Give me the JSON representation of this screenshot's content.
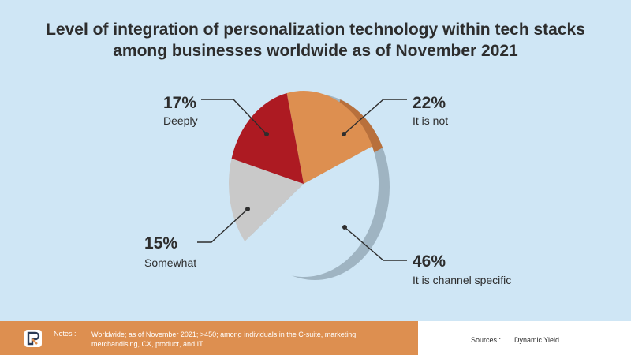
{
  "chart_data": {
    "type": "pie",
    "title_lines": [
      "Level of integration of personalization technology within tech stacks",
      "among businesses worldwide as of November 2021"
    ],
    "slices": [
      {
        "label": "It is not",
        "value": 22,
        "value_label": "22%",
        "color": "#dd8f50"
      },
      {
        "label": "It is channel specific",
        "value": 46,
        "value_label": "46%",
        "color": "#cfe6f5"
      },
      {
        "label": "Somewhat",
        "value": 15,
        "value_label": "15%",
        "color": "#c9c9c9"
      },
      {
        "label": "Deeply",
        "value": 17,
        "value_label": "17%",
        "color": "#ad1a22"
      }
    ]
  },
  "footer": {
    "notes_key": "Notes :",
    "notes_text": "Worldwide; as of November 2021; >450; among individuals in the C-suite, marketing, merchandising, CX, product, and IT",
    "sources_key": "Sources :",
    "sources_text": "Dynamic Yield",
    "logo_icon": "statista-style-logo-icon"
  }
}
